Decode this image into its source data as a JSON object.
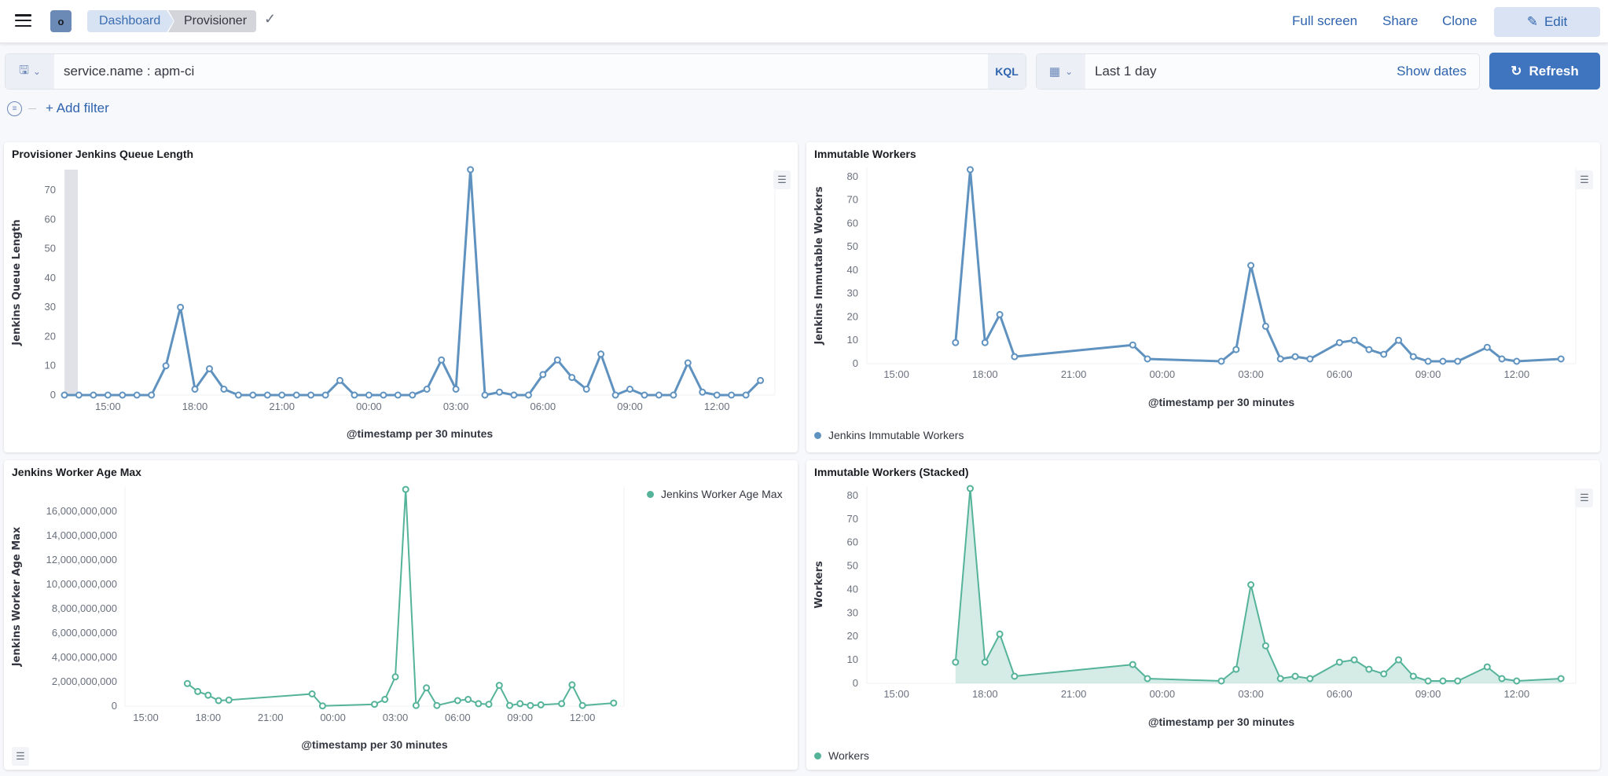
{
  "header": {
    "logo_letter": "o",
    "breadcrumbs": [
      "Dashboard",
      "Provisioner"
    ],
    "links": {
      "full_screen": "Full screen",
      "share": "Share",
      "clone": "Clone",
      "edit": "Edit"
    }
  },
  "query_bar": {
    "query": "service.name : apm-ci",
    "language": "KQL",
    "time_range": "Last 1 day",
    "show_dates": "Show dates",
    "refresh": "Refresh",
    "add_filter": "+ Add filter"
  },
  "colors": {
    "accent": "#3f74bf",
    "blue_series": "#6092c0",
    "green_series": "#54b399"
  },
  "chart_data": [
    {
      "type": "line",
      "title": "Provisioner Jenkins Queue Length",
      "xlabel": "@timestamp per 30 minutes",
      "ylabel": "Jenkins Queue Length",
      "xlim": [
        "13:30",
        "14:00"
      ],
      "ylim": [
        0,
        77
      ],
      "x_ticks": [
        "15:00",
        "18:00",
        "21:00",
        "00:00",
        "03:00",
        "06:00",
        "09:00",
        "12:00"
      ],
      "y_ticks": [
        "0",
        "10",
        "20",
        "30",
        "40",
        "50",
        "60",
        "70"
      ],
      "y_tick_values": [
        0,
        10,
        20,
        30,
        40,
        50,
        60,
        70
      ],
      "grid": false,
      "color": "#6092c0",
      "series": [
        {
          "x": [
            "13:30",
            "14:00",
            "14:30",
            "15:00",
            "15:30",
            "16:00",
            "16:30",
            "17:00",
            "17:30",
            "18:00",
            "18:30",
            "19:00",
            "19:30",
            "20:00",
            "20:30",
            "21:00",
            "21:30",
            "22:00",
            "22:30",
            "23:00",
            "23:30",
            "00:00",
            "00:30",
            "01:00",
            "01:30",
            "02:00",
            "02:30",
            "03:00",
            "03:30",
            "04:00",
            "04:30",
            "05:00",
            "05:30",
            "06:00",
            "06:30",
            "07:00",
            "07:30",
            "08:00",
            "08:30",
            "09:00",
            "09:30",
            "10:00",
            "10:30",
            "11:00",
            "11:30",
            "12:00",
            "12:30",
            "13:00",
            "13:30"
          ],
          "values": [
            0,
            0,
            0,
            0,
            0,
            0,
            0,
            10,
            30,
            2,
            9,
            2,
            0,
            0,
            0,
            0,
            0,
            0,
            0,
            5,
            0,
            0,
            0,
            0,
            0,
            2,
            12,
            2,
            77,
            0,
            1,
            0,
            0,
            7,
            12,
            6,
            2,
            14,
            0,
            2,
            0,
            0,
            0,
            11,
            1,
            0,
            0,
            0,
            5
          ]
        }
      ]
    },
    {
      "type": "line",
      "title": "Immutable Workers",
      "xlabel": "@timestamp per 30 minutes",
      "ylabel": "Jenkins Immutable Workers",
      "xlim": [
        "14:00",
        "14:00"
      ],
      "ylim": [
        0,
        84
      ],
      "x_ticks": [
        "15:00",
        "18:00",
        "21:00",
        "00:00",
        "03:00",
        "06:00",
        "09:00",
        "12:00"
      ],
      "y_ticks": [
        "0",
        "10",
        "20",
        "30",
        "40",
        "50",
        "60",
        "70",
        "80"
      ],
      "y_tick_values": [
        0,
        10,
        20,
        30,
        40,
        50,
        60,
        70,
        80
      ],
      "grid": false,
      "legend": "bottom-left",
      "color": "#6092c0",
      "series": [
        {
          "name": "Jenkins Immutable Workers",
          "x": [
            "17:00",
            "17:30",
            "18:00",
            "18:30",
            "19:00",
            "23:00",
            "23:30",
            "02:00",
            "02:30",
            "03:00",
            "03:30",
            "04:00",
            "04:30",
            "05:00",
            "06:00",
            "06:30",
            "07:00",
            "07:30",
            "08:00",
            "08:30",
            "09:00",
            "09:30",
            "10:00",
            "11:00",
            "11:30",
            "12:00",
            "13:30"
          ],
          "values": [
            9,
            83,
            9,
            21,
            3,
            8,
            2,
            1,
            6,
            42,
            16,
            2,
            3,
            2,
            9,
            10,
            6,
            4,
            10,
            3,
            1,
            1,
            1,
            7,
            2,
            1,
            2
          ]
        }
      ]
    },
    {
      "type": "line",
      "title": "Jenkins Worker Age Max",
      "xlabel": "@timestamp per 30 minutes",
      "ylabel": "Jenkins Worker Age Max",
      "xlim": [
        "14:00",
        "14:00"
      ],
      "ylim": [
        0,
        18000000000
      ],
      "x_ticks": [
        "15:00",
        "18:00",
        "21:00",
        "00:00",
        "03:00",
        "06:00",
        "09:00",
        "12:00"
      ],
      "y_ticks": [
        "0",
        "2,000,000,000",
        "4,000,000,000",
        "6,000,000,000",
        "8,000,000,000",
        "10,000,000,000",
        "12,000,000,000",
        "14,000,000,000",
        "16,000,000,000"
      ],
      "y_tick_values": [
        0,
        2000000000,
        4000000000,
        6000000000,
        8000000000,
        10000000000,
        12000000000,
        14000000000,
        16000000000
      ],
      "grid": false,
      "legend": "top-right",
      "color": "#54b399",
      "series": [
        {
          "name": "Jenkins Worker Age Max",
          "x": [
            "17:00",
            "17:30",
            "18:00",
            "18:30",
            "19:00",
            "23:00",
            "23:30",
            "02:00",
            "02:30",
            "03:00",
            "03:30",
            "04:00",
            "04:30",
            "05:00",
            "06:00",
            "06:30",
            "07:00",
            "07:30",
            "08:00",
            "08:30",
            "09:00",
            "09:30",
            "10:00",
            "11:00",
            "11:30",
            "12:00",
            "13:30"
          ],
          "values": [
            1850000000,
            1200000000,
            900000000,
            450000000,
            500000000,
            1000000000,
            20000000,
            150000000,
            550000000,
            2400000000,
            17800000000,
            50000000,
            1500000000,
            50000000,
            450000000,
            550000000,
            200000000,
            150000000,
            1700000000,
            50000000,
            200000000,
            50000000,
            100000000,
            200000000,
            1750000000,
            50000000,
            250000000
          ]
        }
      ]
    },
    {
      "type": "area",
      "title": "Immutable Workers (Stacked)",
      "xlabel": "@timestamp per 30 minutes",
      "ylabel": "Workers",
      "xlim": [
        "14:00",
        "14:00"
      ],
      "ylim": [
        0,
        84
      ],
      "x_ticks": [
        "15:00",
        "18:00",
        "21:00",
        "00:00",
        "03:00",
        "06:00",
        "09:00",
        "12:00"
      ],
      "y_ticks": [
        "0",
        "10",
        "20",
        "30",
        "40",
        "50",
        "60",
        "70",
        "80"
      ],
      "y_tick_values": [
        0,
        10,
        20,
        30,
        40,
        50,
        60,
        70,
        80
      ],
      "grid": false,
      "legend": "bottom-left",
      "color": "#54b399",
      "series": [
        {
          "name": "Workers",
          "x": [
            "17:00",
            "17:30",
            "18:00",
            "18:30",
            "19:00",
            "23:00",
            "23:30",
            "02:00",
            "02:30",
            "03:00",
            "03:30",
            "04:00",
            "04:30",
            "05:00",
            "06:00",
            "06:30",
            "07:00",
            "07:30",
            "08:00",
            "08:30",
            "09:00",
            "09:30",
            "10:00",
            "11:00",
            "11:30",
            "12:00",
            "13:30"
          ],
          "values": [
            9,
            83,
            9,
            21,
            3,
            8,
            2,
            1,
            6,
            42,
            16,
            2,
            3,
            2,
            9,
            10,
            6,
            4,
            10,
            3,
            1,
            1,
            1,
            7,
            2,
            1,
            2
          ]
        }
      ]
    }
  ]
}
